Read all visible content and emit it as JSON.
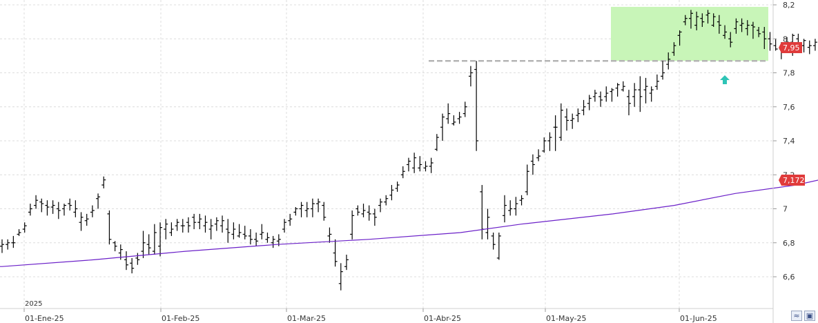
{
  "chart_data": {
    "type": "ohlc",
    "year_label": "2025",
    "x_tick_labels": [
      "01-Ene-25",
      "01-Feb-25",
      "01-Mar-25",
      "01-Abr-25",
      "01-May-25",
      "01-Jun-25"
    ],
    "y_tick_labels": [
      "6,6",
      "6,8",
      "7",
      "7,2",
      "7,4",
      "7,6",
      "7,8",
      "8",
      "8,2"
    ],
    "y_ticks": [
      6.6,
      6.8,
      7.0,
      7.2,
      7.4,
      7.6,
      7.8,
      8.0,
      8.2
    ],
    "ylim": [
      6.4,
      8.2
    ],
    "grid": true,
    "last_price": 7.95,
    "last_price_label": "7,95",
    "ma_last": 7.172,
    "ma_last_label": "7,172",
    "resistance_level": 7.87,
    "range_box": {
      "from_bar": 111,
      "to_bar": 126,
      "low": 7.87,
      "high": 8.18
    },
    "colors": {
      "bars": "#000000",
      "ma": "#6a1fc8",
      "price_badge": "#e03b3b",
      "resistance": "#b4b4b4",
      "range_fill": "#c8f5b8",
      "arrow": "#2ec4b6",
      "grid": "#d8d8d8"
    },
    "ma_series": [
      [
        0,
        6.66
      ],
      [
        15,
        6.7
      ],
      [
        30,
        6.75
      ],
      [
        45,
        6.79
      ],
      [
        60,
        6.82
      ],
      [
        75,
        6.86
      ],
      [
        85,
        6.91
      ],
      [
        100,
        6.97
      ],
      [
        110,
        7.02
      ],
      [
        120,
        7.09
      ],
      [
        130,
        7.14
      ],
      [
        134,
        7.172
      ]
    ],
    "bars": [
      [
        6.78,
        6.82,
        6.74,
        6.79
      ],
      [
        6.79,
        6.82,
        6.76,
        6.8
      ],
      [
        6.8,
        6.84,
        6.77,
        6.8
      ],
      [
        6.85,
        6.88,
        6.84,
        6.86
      ],
      [
        6.88,
        6.92,
        6.86,
        6.9
      ],
      [
        6.98,
        7.03,
        6.96,
        7.0
      ],
      [
        7.02,
        7.08,
        7.0,
        7.05
      ],
      [
        7.04,
        7.06,
        6.98,
        7.03
      ],
      [
        7.02,
        7.05,
        6.96,
        7.01
      ],
      [
        7.01,
        7.05,
        6.97,
        7.02
      ],
      [
        7.0,
        7.04,
        6.94,
        6.99
      ],
      [
        7.0,
        7.03,
        6.96,
        7.02
      ],
      [
        7.03,
        7.06,
        6.99,
        7.02
      ],
      [
        6.98,
        7.05,
        6.95,
        7.0
      ],
      [
        6.92,
        6.98,
        6.87,
        6.95
      ],
      [
        6.93,
        6.97,
        6.9,
        6.94
      ],
      [
        6.98,
        7.02,
        6.95,
        6.99
      ],
      [
        7.06,
        7.09,
        7.0,
        7.07
      ],
      [
        7.14,
        7.19,
        7.12,
        7.17
      ],
      [
        6.97,
        6.99,
        6.79,
        6.82
      ],
      [
        6.8,
        6.81,
        6.75,
        6.78
      ],
      [
        6.74,
        6.79,
        6.7,
        6.76
      ],
      [
        6.7,
        6.75,
        6.64,
        6.67
      ],
      [
        6.68,
        6.71,
        6.62,
        6.65
      ],
      [
        6.71,
        6.74,
        6.67,
        6.7
      ],
      [
        6.75,
        6.87,
        6.71,
        6.8
      ],
      [
        6.79,
        6.85,
        6.73,
        6.77
      ],
      [
        6.75,
        6.91,
        6.73,
        6.86
      ],
      [
        6.78,
        6.92,
        6.72,
        6.89
      ],
      [
        6.88,
        6.94,
        6.82,
        6.91
      ],
      [
        6.86,
        6.92,
        6.84,
        6.88
      ],
      [
        6.9,
        6.94,
        6.87,
        6.92
      ],
      [
        6.9,
        6.94,
        6.86,
        6.9
      ],
      [
        6.92,
        6.95,
        6.86,
        6.9
      ],
      [
        6.95,
        6.97,
        6.88,
        6.92
      ],
      [
        6.92,
        6.97,
        6.88,
        6.94
      ],
      [
        6.9,
        6.96,
        6.86,
        6.92
      ],
      [
        6.88,
        6.94,
        6.82,
        6.9
      ],
      [
        6.91,
        6.95,
        6.87,
        6.93
      ],
      [
        6.9,
        6.96,
        6.86,
        6.93
      ],
      [
        6.88,
        6.94,
        6.8,
        6.86
      ],
      [
        6.85,
        6.92,
        6.82,
        6.88
      ],
      [
        6.84,
        6.91,
        6.83,
        6.86
      ],
      [
        6.85,
        6.9,
        6.82,
        6.84
      ],
      [
        6.84,
        6.88,
        6.79,
        6.82
      ],
      [
        6.82,
        6.86,
        6.78,
        6.81
      ],
      [
        6.85,
        6.91,
        6.82,
        6.86
      ],
      [
        6.82,
        6.86,
        6.8,
        6.83
      ],
      [
        6.8,
        6.84,
        6.77,
        6.82
      ],
      [
        6.81,
        6.85,
        6.78,
        6.82
      ],
      [
        6.88,
        6.94,
        6.86,
        6.92
      ],
      [
        6.93,
        6.97,
        6.9,
        6.94
      ],
      [
        6.98,
        7.01,
        6.96,
        7.0
      ],
      [
        7.0,
        7.04,
        6.95,
        7.02
      ],
      [
        6.99,
        7.04,
        6.95,
        7.0
      ],
      [
        7.0,
        7.06,
        6.95,
        7.03
      ],
      [
        7.03,
        7.06,
        6.98,
        7.04
      ],
      [
        7.02,
        7.04,
        6.93,
        6.95
      ],
      [
        6.84,
        6.89,
        6.8,
        6.85
      ],
      [
        6.74,
        6.82,
        6.66,
        6.69
      ],
      [
        6.56,
        6.68,
        6.52,
        6.63
      ],
      [
        6.66,
        6.73,
        6.64,
        6.7
      ],
      [
        6.85,
        6.99,
        6.82,
        6.96
      ],
      [
        7.0,
        7.02,
        6.96,
        6.98
      ],
      [
        6.97,
        7.03,
        6.95,
        6.99
      ],
      [
        6.98,
        7.02,
        6.93,
        6.97
      ],
      [
        6.97,
        7.0,
        6.9,
        6.95
      ],
      [
        7.02,
        7.06,
        6.98,
        7.04
      ],
      [
        7.04,
        7.08,
        7.02,
        7.06
      ],
      [
        7.08,
        7.14,
        7.05,
        7.11
      ],
      [
        7.12,
        7.16,
        7.1,
        7.14
      ],
      [
        7.2,
        7.25,
        7.18,
        7.22
      ],
      [
        7.26,
        7.3,
        7.22,
        7.28
      ],
      [
        7.24,
        7.33,
        7.21,
        7.3
      ],
      [
        7.24,
        7.31,
        7.22,
        7.26
      ],
      [
        7.24,
        7.28,
        7.22,
        7.25
      ],
      [
        7.25,
        7.3,
        7.21,
        7.27
      ],
      [
        7.35,
        7.44,
        7.34,
        7.42
      ],
      [
        7.48,
        7.56,
        7.4,
        7.54
      ],
      [
        7.53,
        7.62,
        7.5,
        7.56
      ],
      [
        7.5,
        7.55,
        7.49,
        7.51
      ],
      [
        7.53,
        7.57,
        7.5,
        7.54
      ],
      [
        7.56,
        7.63,
        7.54,
        7.6
      ],
      [
        7.78,
        7.84,
        7.72,
        7.8
      ],
      [
        7.82,
        7.87,
        7.34,
        7.4
      ],
      [
        7.1,
        7.14,
        6.82,
        6.88
      ],
      [
        6.86,
        7.0,
        6.82,
        6.95
      ],
      [
        6.84,
        6.86,
        6.76,
        6.79
      ],
      [
        6.71,
        6.86,
        6.7,
        6.84
      ],
      [
        6.96,
        7.08,
        6.92,
        7.02
      ],
      [
        6.99,
        7.05,
        6.96,
        7.0
      ],
      [
        7.0,
        7.07,
        6.96,
        7.03
      ],
      [
        7.05,
        7.08,
        7.02,
        7.06
      ],
      [
        7.1,
        7.26,
        7.08,
        7.22
      ],
      [
        7.28,
        7.32,
        7.2,
        7.26
      ],
      [
        7.3,
        7.35,
        7.28,
        7.31
      ],
      [
        7.34,
        7.42,
        7.33,
        7.4
      ],
      [
        7.4,
        7.45,
        7.34,
        7.42
      ],
      [
        7.48,
        7.55,
        7.34,
        7.48
      ],
      [
        7.42,
        7.62,
        7.4,
        7.58
      ],
      [
        7.54,
        7.59,
        7.46,
        7.52
      ],
      [
        7.52,
        7.56,
        7.47,
        7.53
      ],
      [
        7.55,
        7.59,
        7.51,
        7.56
      ],
      [
        7.58,
        7.64,
        7.55,
        7.6
      ],
      [
        7.62,
        7.67,
        7.58,
        7.65
      ],
      [
        7.66,
        7.7,
        7.63,
        7.68
      ],
      [
        7.66,
        7.69,
        7.6,
        7.64
      ],
      [
        7.66,
        7.72,
        7.63,
        7.68
      ],
      [
        7.69,
        7.71,
        7.63,
        7.7
      ],
      [
        7.71,
        7.74,
        7.66,
        7.73
      ],
      [
        7.7,
        7.75,
        7.69,
        7.72
      ],
      [
        7.66,
        7.7,
        7.55,
        7.62
      ],
      [
        7.66,
        7.74,
        7.6,
        7.7
      ],
      [
        7.7,
        7.78,
        7.57,
        7.66
      ],
      [
        7.7,
        7.77,
        7.62,
        7.72
      ],
      [
        7.68,
        7.72,
        7.63,
        7.7
      ],
      [
        7.72,
        7.79,
        7.7,
        7.75
      ],
      [
        7.78,
        7.87,
        7.76,
        7.8
      ],
      [
        7.85,
        7.92,
        7.82,
        7.88
      ],
      [
        7.92,
        7.98,
        7.9,
        7.96
      ],
      [
        8.02,
        8.05,
        7.96,
        8.04
      ],
      [
        8.1,
        8.14,
        8.08,
        8.12
      ],
      [
        8.12,
        8.17,
        8.06,
        8.15
      ],
      [
        8.08,
        8.16,
        8.05,
        8.13
      ],
      [
        8.12,
        8.15,
        8.07,
        8.1
      ],
      [
        8.14,
        8.17,
        8.09,
        8.15
      ],
      [
        8.08,
        8.15,
        8.07,
        8.13
      ],
      [
        8.1,
        8.14,
        8.03,
        8.08
      ],
      [
        8.02,
        8.08,
        8.0,
        8.04
      ],
      [
        8.0,
        8.04,
        7.95,
        7.98
      ],
      [
        8.06,
        8.12,
        8.03,
        8.1
      ],
      [
        8.08,
        8.12,
        8.04,
        8.09
      ],
      [
        8.06,
        8.11,
        8.02,
        8.08
      ],
      [
        8.08,
        8.1,
        8.0,
        8.07
      ],
      [
        8.05,
        8.07,
        8.01,
        8.03
      ]
    ],
    "tail_bars": [
      [
        8.04,
        8.07,
        7.94,
        8.0
      ],
      [
        8.0,
        8.04,
        7.93,
        7.97
      ],
      [
        7.96,
        8.0,
        7.93,
        7.94
      ],
      [
        7.94,
        7.98,
        7.88,
        7.95
      ],
      [
        7.93,
        8.01,
        7.92,
        7.98
      ],
      [
        7.98,
        8.03,
        7.9,
        8.02
      ],
      [
        8.0,
        8.03,
        7.94,
        7.97
      ],
      [
        7.96,
        8.0,
        7.92,
        7.99
      ],
      [
        7.95,
        7.99,
        7.91,
        7.96
      ],
      [
        7.96,
        8.0,
        7.93,
        7.98
      ],
      [
        7.95,
        7.98,
        7.92,
        7.95
      ]
    ]
  }
}
